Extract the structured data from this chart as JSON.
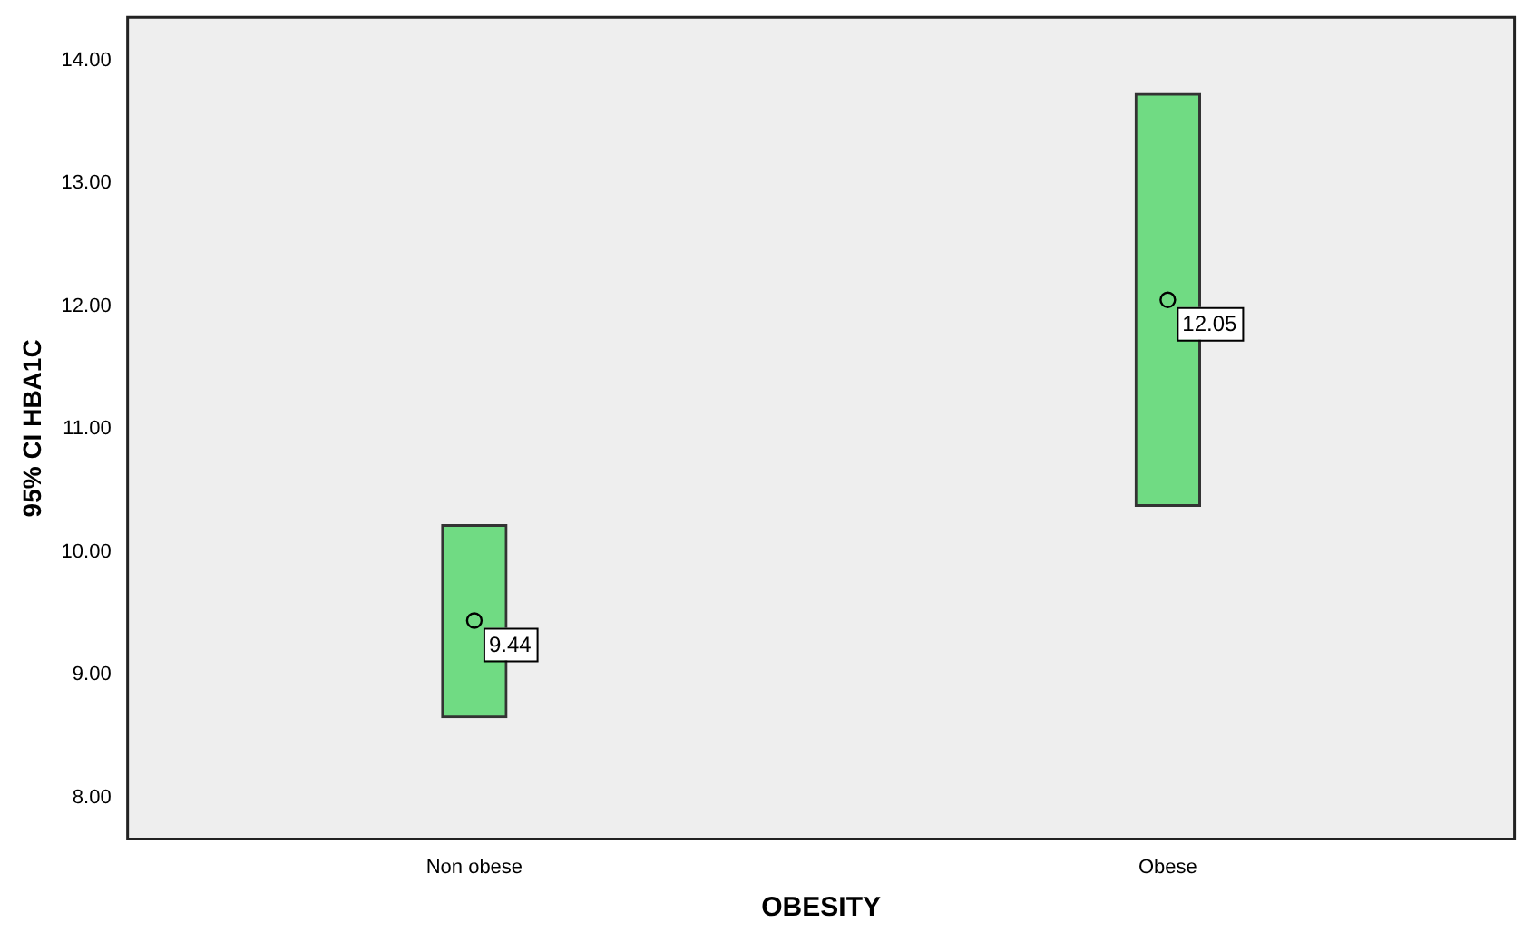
{
  "chart_data": {
    "type": "bar",
    "xlabel": "OBESITY",
    "ylabel": "95% CI HBA1C",
    "categories": [
      "Non obese",
      "Obese"
    ],
    "series": [
      {
        "color": "#70db83",
        "base": [
          8.65,
          10.37
        ],
        "values": [
          1.57,
          3.36
        ]
      },
      {
        "type": "scatter",
        "color": "#000000",
        "x": [
          "Non obese",
          "Obese"
        ],
        "values": [
          9.44,
          12.05
        ],
        "value_labels": [
          "9.44",
          "12.05"
        ],
        "marker": "circle"
      }
    ],
    "ylim": [
      7.66,
      14.35
    ],
    "yticks": [
      {
        "value": 8,
        "label": "8.00"
      },
      {
        "value": 9,
        "label": "9.00"
      },
      {
        "value": 10,
        "label": "10.00"
      },
      {
        "value": 11,
        "label": "11.00"
      },
      {
        "value": 12,
        "label": "12.00"
      },
      {
        "value": 13,
        "label": "13.00"
      },
      {
        "value": 14,
        "label": "14.00"
      }
    ],
    "grid": false,
    "legend": false
  }
}
